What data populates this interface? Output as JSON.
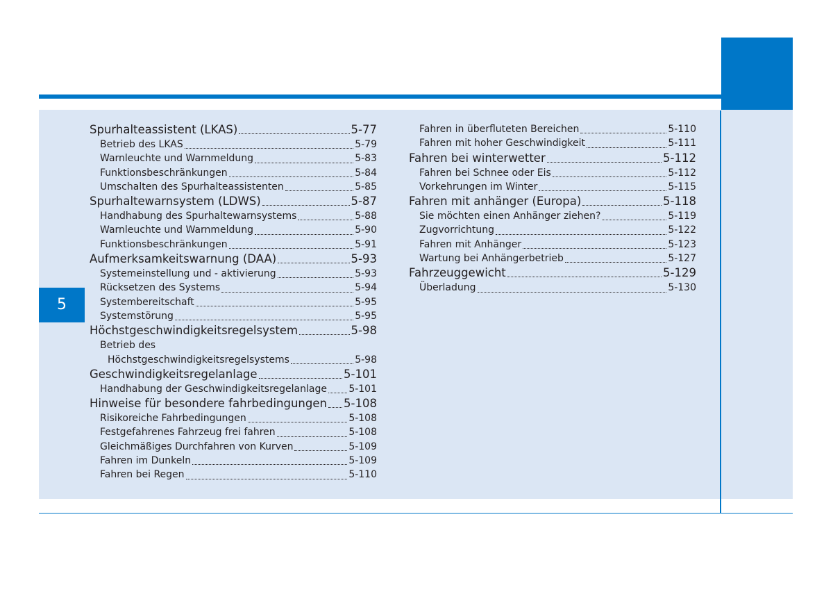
{
  "chapter": "5",
  "left_column": {
    "lkas": {
      "title": "Spurhalteassistent (LKAS)",
      "page": "5-77"
    },
    "lkas_betrieb": {
      "title": "Betrieb des LKAS",
      "page": "5-79"
    },
    "lkas_warn": {
      "title": "Warnleuchte und Warnmeldung",
      "page": "5-83"
    },
    "lkas_funk": {
      "title": "Funktionsbeschränkungen",
      "page": "5-84"
    },
    "lkas_umsch": {
      "title": "Umschalten des Spurhalteassistenten",
      "page": "5-85"
    },
    "ldws": {
      "title": "Spurhaltewarnsystem (LDWS)",
      "page": "5-87"
    },
    "ldws_hand": {
      "title": "Handhabung des Spurhaltewarnsystems",
      "page": "5-88"
    },
    "ldws_warn": {
      "title": "Warnleuchte und Warnmeldung",
      "page": "5-90"
    },
    "ldws_funk": {
      "title": "Funktionsbeschränkungen",
      "page": "5-91"
    },
    "daa": {
      "title": "Aufmerksamkeitswarnung (DAA)",
      "page": "5-93"
    },
    "daa_sys": {
      "title": "Systemeinstellung und - aktivierung",
      "page": "5-93"
    },
    "daa_reset": {
      "title": "Rücksetzen des Systems",
      "page": "5-94"
    },
    "daa_bereit": {
      "title": "Systembereitschaft",
      "page": "5-95"
    },
    "daa_stoer": {
      "title": "Systemstörung",
      "page": "5-95"
    },
    "hgr": {
      "title": "Höchstgeschwindigkeitsregelsystem",
      "page": "5-98"
    },
    "hgr_betrieb_line1": "Betrieb des",
    "hgr_betrieb": {
      "title": "Höchstgeschwindigkeitsregelsystems",
      "page": "5-98"
    },
    "gra": {
      "title": "Geschwindigkeitsregelanlage",
      "page": "5-101"
    },
    "gra_hand": {
      "title": "Handhabung der Geschwindigkeitsregelanlage",
      "page": "5-101"
    },
    "hinw": {
      "title": "Hinweise für besondere fahrbedingungen",
      "page": "5-108"
    },
    "hinw_risk": {
      "title": "Risikoreiche Fahrbedingungen",
      "page": "5-108"
    },
    "hinw_fest": {
      "title": "Festgefahrenes Fahrzeug frei fahren",
      "page": "5-108"
    },
    "hinw_kurv": {
      "title": "Gleichmäßiges Durchfahren von Kurven",
      "page": "5-109"
    },
    "hinw_dunk": {
      "title": "Fahren im Dunkeln",
      "page": "5-109"
    },
    "hinw_regen": {
      "title": "Fahren bei Regen",
      "page": "5-110"
    }
  },
  "right_column": {
    "ueberflut": {
      "title": "Fahren in überfluteten Bereichen",
      "page": "5-110"
    },
    "hoch": {
      "title": "Fahren mit hoher Geschwindigkeit",
      "page": "5-111"
    },
    "winter": {
      "title": "Fahren bei winterwetter",
      "page": "5-112"
    },
    "schnee": {
      "title": "Fahren bei Schnee oder Eis",
      "page": "5-112"
    },
    "vorkehr": {
      "title": "Vorkehrungen im Winter",
      "page": "5-115"
    },
    "anh": {
      "title": "Fahren mit anhänger (Europa)",
      "page": "5-118"
    },
    "anh_ziehen": {
      "title": "Sie möchten einen Anhänger ziehen?",
      "page": "5-119"
    },
    "anh_zug": {
      "title": "Zugvorrichtung",
      "page": "5-122"
    },
    "anh_fahren": {
      "title": "Fahren mit Anhänger",
      "page": "5-123"
    },
    "anh_wartung": {
      "title": "Wartung bei Anhängerbetrieb",
      "page": "5-127"
    },
    "gewicht": {
      "title": "Fahrzeuggewicht",
      "page": "5-129"
    },
    "ueberl": {
      "title": "Überladung",
      "page": "5-130"
    }
  }
}
